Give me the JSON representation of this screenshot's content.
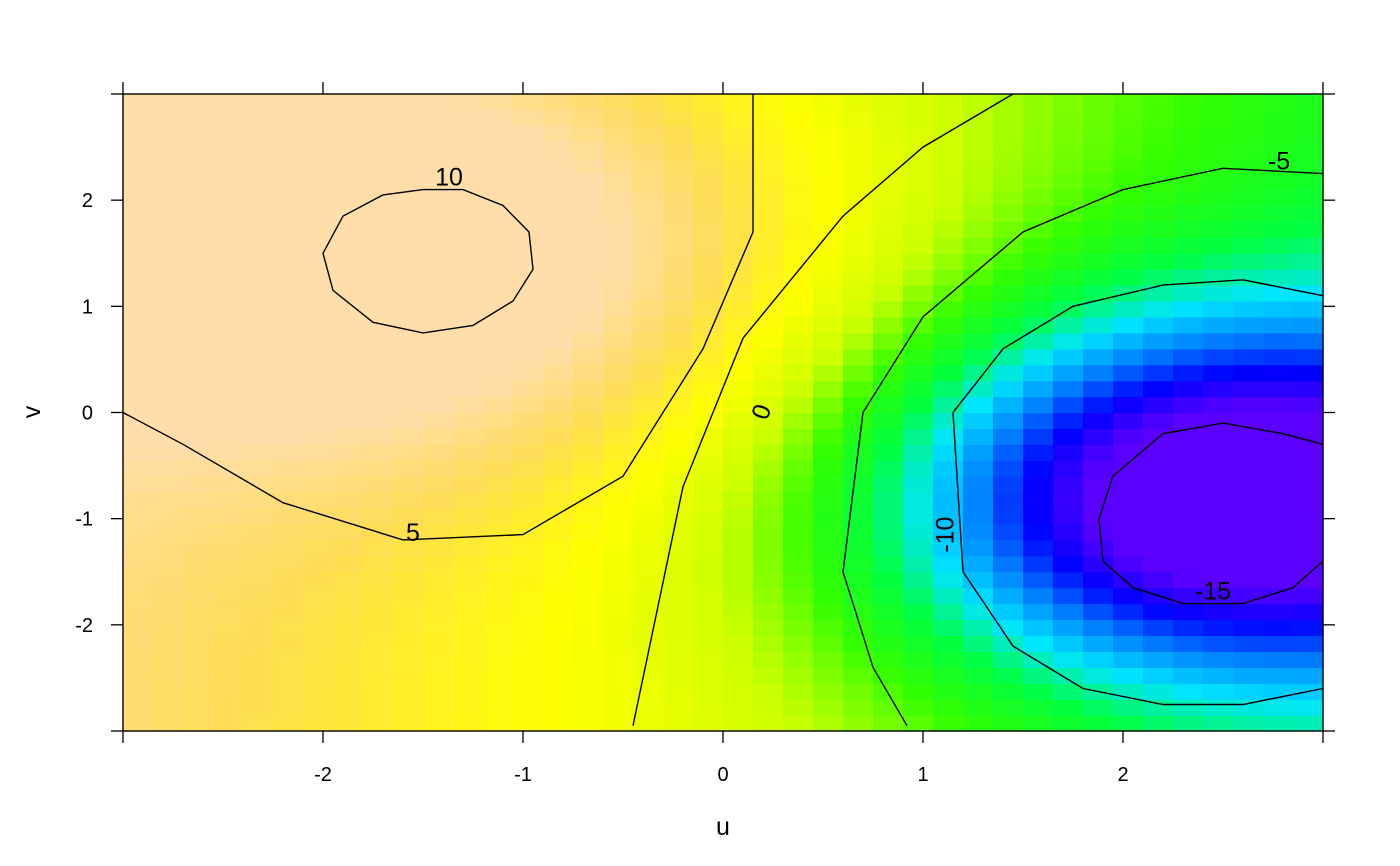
{
  "chart_data": {
    "type": "heatmap",
    "title": "",
    "xlabel": "u",
    "ylabel": "v",
    "xlim": [
      -3,
      3
    ],
    "ylim": [
      -3,
      3
    ],
    "x_ticks": [
      -2,
      -1,
      0,
      1,
      2
    ],
    "y_ticks": [
      -2,
      -1,
      0,
      1,
      2
    ],
    "x_tick_labels": [
      "-2",
      "-1",
      "0",
      "1",
      "2"
    ],
    "y_tick_labels": [
      "-2",
      "-1",
      "0",
      "1",
      "2"
    ],
    "color_scale": [
      "#5a00ff",
      "#0000ff",
      "#0080ff",
      "#00e5ff",
      "#00ff40",
      "#33ff00",
      "#ccff00",
      "#ffff00",
      "#ffdd55",
      "#ffdeaa"
    ],
    "value_range": [
      -20,
      12
    ],
    "grid": false,
    "contours": [
      {
        "level": -15,
        "label": "-15",
        "label_pos": [
          2.45,
          -1.7
        ],
        "label_rotation": 0,
        "path": [
          [
            3.0,
            -1.4
          ],
          [
            2.85,
            -1.65
          ],
          [
            2.6,
            -1.8
          ],
          [
            2.3,
            -1.8
          ],
          [
            2.05,
            -1.65
          ],
          [
            1.9,
            -1.4
          ],
          [
            1.88,
            -1.0
          ],
          [
            1.95,
            -0.6
          ],
          [
            2.2,
            -0.2
          ],
          [
            2.5,
            -0.1
          ],
          [
            2.8,
            -0.2
          ],
          [
            3.0,
            -0.3
          ]
        ]
      },
      {
        "level": -10,
        "label": "-10",
        "label_pos": [
          1.12,
          -1.15
        ],
        "label_rotation": -90,
        "path": [
          [
            3.0,
            1.1
          ],
          [
            2.6,
            1.25
          ],
          [
            2.2,
            1.2
          ],
          [
            1.75,
            1.0
          ],
          [
            1.4,
            0.6
          ],
          [
            1.15,
            0.0
          ],
          [
            1.2,
            -1.5
          ],
          [
            1.45,
            -2.2
          ],
          [
            1.8,
            -2.6
          ],
          [
            2.2,
            -2.75
          ],
          [
            2.6,
            -2.75
          ],
          [
            3.0,
            -2.6
          ]
        ]
      },
      {
        "level": -5,
        "label": "-5",
        "label_pos": [
          2.78,
          2.35
        ],
        "label_rotation": 0,
        "path": [
          [
            3.0,
            2.25
          ],
          [
            2.5,
            2.3
          ],
          [
            2.0,
            2.1
          ],
          [
            1.5,
            1.7
          ],
          [
            1.0,
            0.9
          ],
          [
            0.7,
            0.0
          ],
          [
            0.6,
            -1.5
          ],
          [
            0.75,
            -2.4
          ],
          [
            0.92,
            -2.95
          ]
        ]
      },
      {
        "level": 0,
        "label": "0",
        "label_pos": [
          0.2,
          0.0
        ],
        "label_rotation": -70,
        "path": [
          [
            1.45,
            3.0
          ],
          [
            1.0,
            2.5
          ],
          [
            0.6,
            1.85
          ],
          [
            0.1,
            0.7
          ],
          [
            -0.2,
            -0.7
          ],
          [
            -0.45,
            -2.95
          ]
        ]
      },
      {
        "level": 5,
        "label": "5",
        "label_pos": [
          -1.55,
          -1.15
        ],
        "label_rotation": 0,
        "path": [
          [
            -3.0,
            0.0
          ],
          [
            -2.7,
            -0.3
          ],
          [
            -2.2,
            -0.85
          ],
          [
            -1.6,
            -1.2
          ],
          [
            -1.0,
            -1.15
          ],
          [
            -0.5,
            -0.6
          ],
          [
            -0.1,
            0.6
          ],
          [
            0.15,
            1.7
          ],
          [
            0.15,
            3.0
          ]
        ]
      },
      {
        "level": 10,
        "label": "10",
        "label_pos": [
          -1.37,
          2.2
        ],
        "label_rotation": 0,
        "path": [
          [
            -1.5,
            2.1
          ],
          [
            -1.7,
            2.05
          ],
          [
            -1.9,
            1.85
          ],
          [
            -2.0,
            1.5
          ],
          [
            -1.95,
            1.15
          ],
          [
            -1.75,
            0.85
          ],
          [
            -1.5,
            0.75
          ],
          [
            -1.25,
            0.82
          ],
          [
            -1.05,
            1.05
          ],
          [
            -0.95,
            1.35
          ],
          [
            -0.97,
            1.7
          ],
          [
            -1.1,
            1.95
          ],
          [
            -1.3,
            2.1
          ],
          [
            -1.5,
            2.1
          ]
        ]
      }
    ]
  }
}
